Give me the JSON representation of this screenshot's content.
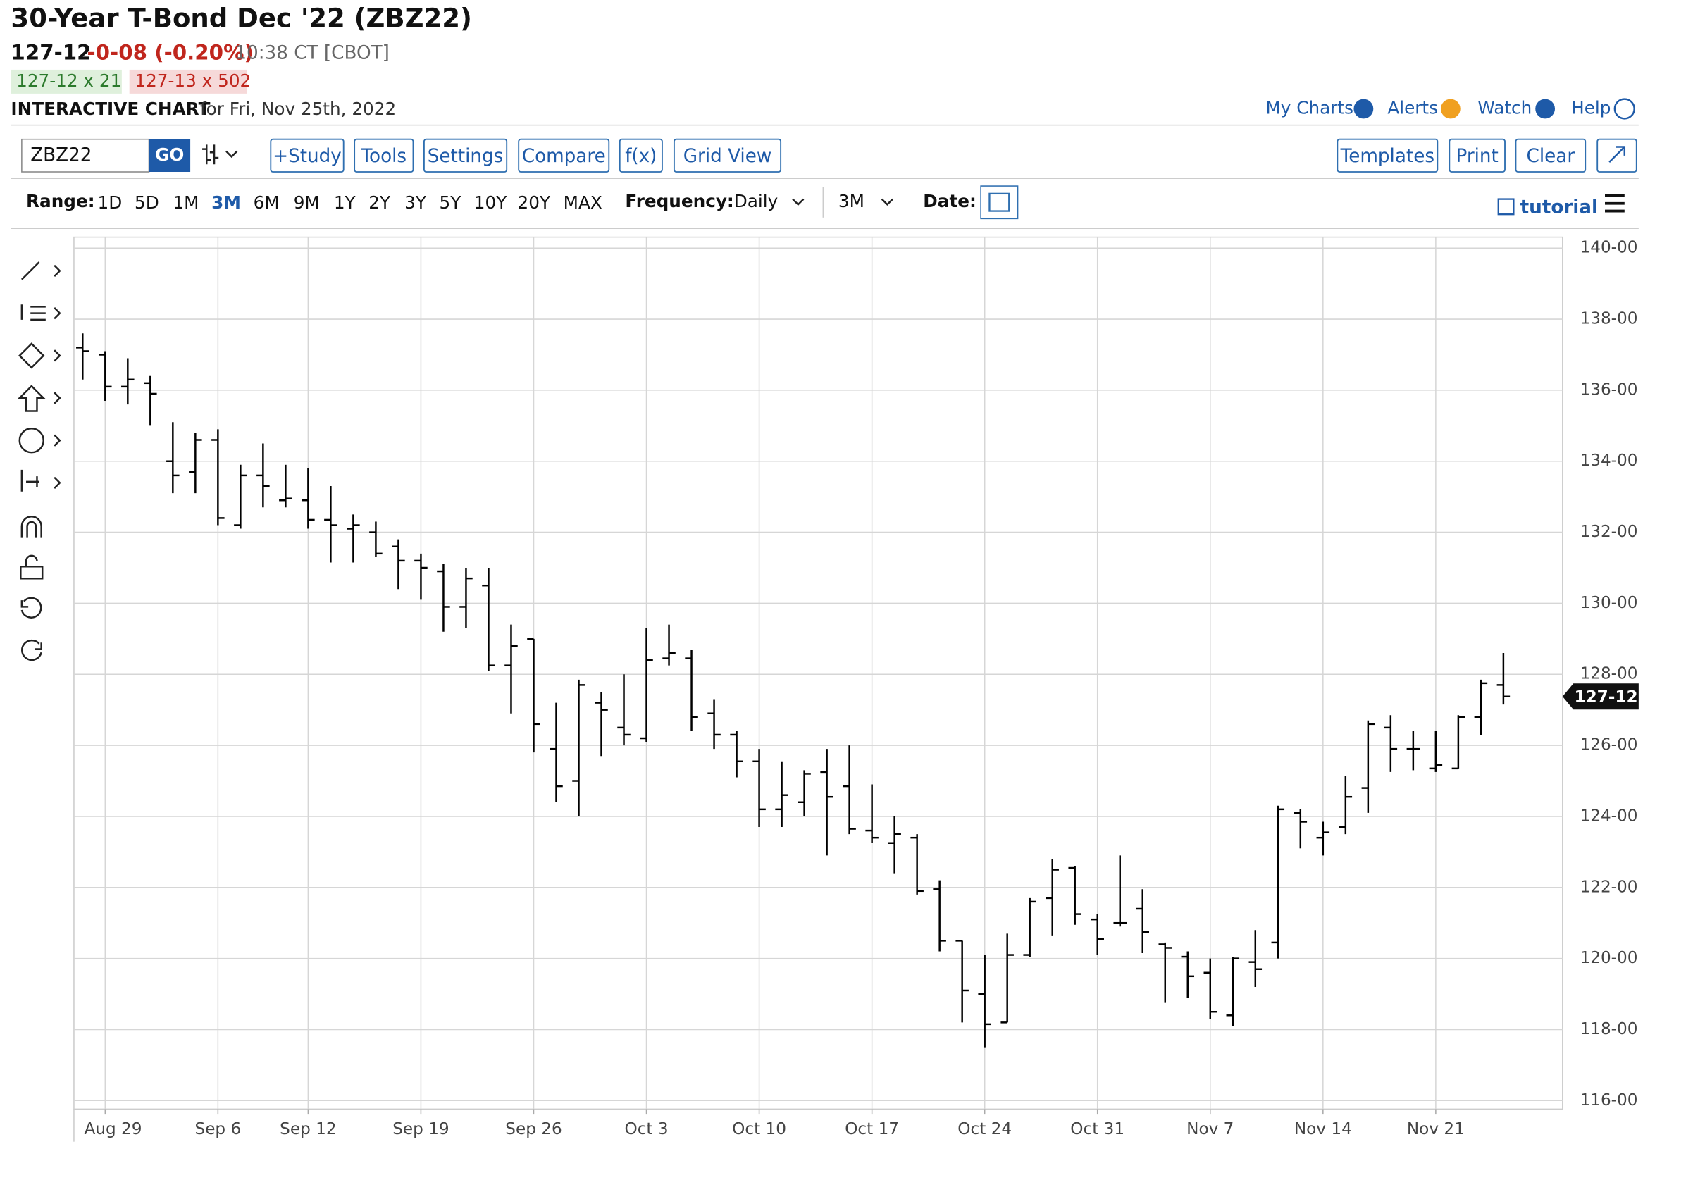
{
  "header": {
    "title": "30-Year T-Bond Dec '22 (ZBZ22)",
    "last": "127-12",
    "change": "-0-08 (-0.20%)",
    "time": "10:38 CT [CBOT]",
    "bid": "127-12 x 21",
    "ask": "127-13 x 502",
    "chart_label": "INTERACTIVE CHART",
    "chart_date": "for Fri, Nov 25th, 2022"
  },
  "top_links": [
    "My Charts",
    "Alerts",
    "Watch",
    "Help"
  ],
  "toolbar": {
    "symbol": "ZBZ22",
    "go": "GO",
    "buttons": [
      "+Study",
      "Tools",
      "Settings",
      "Compare",
      "f(x)",
      "Grid View"
    ],
    "right_buttons": [
      "Templates",
      "Print",
      "Clear"
    ]
  },
  "range_bar": {
    "range_label": "Range:",
    "ranges": [
      "1D",
      "5D",
      "1M",
      "3M",
      "6M",
      "9M",
      "1Y",
      "2Y",
      "3Y",
      "5Y",
      "10Y",
      "20Y",
      "MAX"
    ],
    "active_range": 3,
    "frequency_label": "Frequency:",
    "frequency": "Daily",
    "period": "3M",
    "date_label": "Date:",
    "tutorial": "tutorial"
  },
  "chart_data": {
    "type": "ohlc",
    "grid": true,
    "categories": [
      null,
      "Aug 29",
      null,
      null,
      null,
      null,
      "Sep 6",
      null,
      null,
      null,
      "Sep 12",
      null,
      null,
      null,
      null,
      "Sep 19",
      null,
      null,
      null,
      null,
      "Sep 26",
      null,
      null,
      null,
      null,
      "Oct 3",
      null,
      null,
      null,
      null,
      "Oct 10",
      null,
      null,
      null,
      null,
      "Oct 17",
      null,
      null,
      null,
      null,
      "Oct 24",
      null,
      null,
      null,
      null,
      "Oct 31",
      null,
      null,
      null,
      null,
      "Nov 7",
      null,
      null,
      null,
      null,
      "Nov 14",
      null,
      null,
      null,
      null,
      "Nov 21",
      null,
      null,
      null
    ],
    "series": [
      {
        "color": "#000000",
        "open": [
          137.2,
          137.0,
          136.1,
          136.2,
          134.0,
          133.7,
          134.6,
          132.2,
          133.6,
          132.9,
          132.9,
          132.35,
          132.1,
          132.0,
          131.6,
          131.2,
          130.9,
          129.9,
          130.5,
          128.25,
          129.0,
          125.9,
          125.0,
          127.2,
          126.5,
          126.2,
          128.45,
          128.45,
          126.9,
          126.3,
          125.55,
          124.2,
          124.4,
          125.25,
          124.85,
          123.6,
          123.25,
          123.4,
          121.95,
          120.5,
          119.0,
          118.2,
          120.1,
          121.7,
          122.55,
          121.1,
          121.0,
          121.4,
          120.4,
          120.05,
          119.6,
          118.4,
          119.9,
          120.45,
          124.1,
          123.4,
          123.7,
          124.8,
          126.5,
          125.9,
          125.35,
          125.35,
          126.8,
          127.7
        ],
        "high": [
          137.6,
          137.1,
          136.9,
          136.4,
          135.1,
          134.8,
          134.9,
          133.9,
          134.5,
          133.9,
          133.8,
          133.3,
          132.5,
          132.3,
          131.8,
          131.4,
          131.1,
          131.0,
          131.0,
          129.4,
          129.0,
          127.2,
          127.85,
          127.5,
          128.0,
          129.3,
          129.4,
          128.7,
          127.3,
          126.4,
          125.9,
          125.55,
          125.3,
          125.9,
          126.0,
          124.9,
          124.0,
          123.5,
          122.2,
          120.5,
          120.1,
          120.7,
          121.7,
          122.8,
          122.6,
          121.25,
          122.9,
          121.95,
          120.45,
          120.2,
          120.0,
          120.05,
          120.8,
          124.3,
          124.2,
          123.85,
          125.15,
          126.7,
          126.85,
          126.4,
          126.4,
          126.85,
          127.85,
          128.6
        ],
        "low": [
          136.3,
          135.7,
          135.6,
          135.0,
          133.1,
          133.1,
          132.2,
          132.1,
          132.7,
          132.7,
          132.1,
          131.15,
          131.15,
          131.3,
          130.4,
          130.1,
          129.2,
          129.3,
          128.1,
          126.9,
          125.8,
          124.4,
          124.0,
          125.7,
          126.0,
          126.1,
          128.25,
          126.4,
          125.9,
          125.1,
          123.7,
          123.7,
          124.0,
          122.9,
          123.5,
          123.25,
          122.4,
          121.8,
          120.2,
          118.2,
          117.5,
          118.2,
          120.05,
          120.65,
          120.95,
          120.1,
          120.9,
          120.15,
          118.75,
          118.9,
          118.3,
          118.1,
          119.2,
          120.0,
          123.1,
          122.9,
          123.5,
          124.1,
          125.25,
          125.3,
          125.25,
          125.35,
          126.3,
          127.15
        ],
        "close": [
          137.1,
          136.1,
          136.3,
          135.9,
          133.6,
          134.6,
          132.4,
          133.6,
          133.3,
          132.95,
          132.35,
          132.2,
          132.2,
          131.4,
          131.2,
          131.0,
          129.9,
          130.7,
          128.25,
          128.8,
          126.6,
          124.85,
          127.7,
          127.0,
          126.3,
          128.4,
          128.6,
          126.8,
          126.3,
          125.55,
          124.2,
          124.6,
          125.2,
          124.55,
          123.65,
          123.4,
          123.5,
          121.9,
          120.5,
          119.1,
          118.15,
          120.1,
          121.6,
          122.5,
          121.25,
          120.55,
          121.0,
          120.75,
          120.3,
          119.5,
          118.5,
          120.0,
          119.7,
          124.2,
          123.85,
          123.55,
          124.55,
          126.6,
          125.9,
          125.9,
          125.45,
          126.8,
          127.75,
          127.375
        ]
      }
    ],
    "ylim": [
      115.76,
      140.31
    ],
    "yticks": [
      {
        "value": 116,
        "label": "116-00"
      },
      {
        "value": 118,
        "label": "118-00"
      },
      {
        "value": 120,
        "label": "120-00"
      },
      {
        "value": 122,
        "label": "122-00"
      },
      {
        "value": 124,
        "label": "124-00"
      },
      {
        "value": 126,
        "label": "126-00"
      },
      {
        "value": 128,
        "label": "128-00"
      },
      {
        "value": 130,
        "label": "130-00"
      },
      {
        "value": 132,
        "label": "132-00"
      },
      {
        "value": 134,
        "label": "134-00"
      },
      {
        "value": 136,
        "label": "136-00"
      },
      {
        "value": 138,
        "label": "138-00"
      },
      {
        "value": 140,
        "label": "140-00"
      }
    ],
    "last_price": {
      "value": 127.375,
      "label": "127-12"
    }
  }
}
